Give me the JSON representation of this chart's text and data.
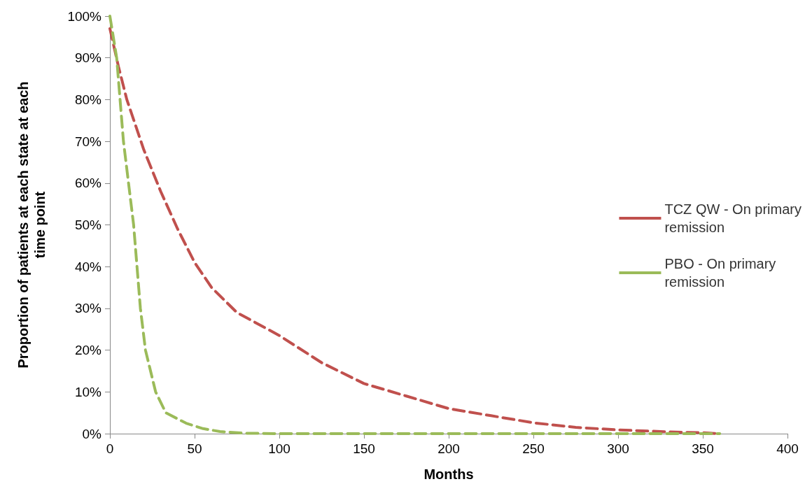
{
  "chart_data": {
    "type": "line",
    "xlabel": "Months",
    "ylabel": "Proportion of patients at each state at each time point",
    "xlim": [
      0,
      400
    ],
    "xticks": [
      0,
      50,
      100,
      150,
      200,
      250,
      300,
      350,
      400
    ],
    "ylim": [
      0,
      100
    ],
    "yticks": [
      {
        "value": 0,
        "label": "0%"
      },
      {
        "value": 10,
        "label": "10%"
      },
      {
        "value": 20,
        "label": "20%"
      },
      {
        "value": 30,
        "label": "30%"
      },
      {
        "value": 40,
        "label": "40%"
      },
      {
        "value": 50,
        "label": "50%"
      },
      {
        "value": 60,
        "label": "60%"
      },
      {
        "value": 70,
        "label": "70%"
      },
      {
        "value": 80,
        "label": "80%"
      },
      {
        "value": 90,
        "label": "90%"
      },
      {
        "value": 100,
        "label": "100%"
      }
    ],
    "grid": false,
    "legend": "right",
    "marker": "none",
    "line_style": "dashed",
    "series": [
      {
        "name": "TCZ QW - On primary remission",
        "color": "#c0504d",
        "x": [
          0,
          5,
          10,
          20,
          30,
          40,
          50,
          60,
          75,
          100,
          125,
          150,
          175,
          200,
          225,
          250,
          275,
          300,
          325,
          350,
          360
        ],
        "values": [
          97,
          88,
          80,
          68,
          58,
          49,
          41,
          35,
          29,
          23.5,
          17,
          12,
          9,
          6,
          4.3,
          2.6,
          1.5,
          0.9,
          0.5,
          0.2,
          0
        ]
      },
      {
        "name": "PBO - On primary remission",
        "color": "#9bbb59",
        "x": [
          0,
          2,
          4,
          6,
          8,
          11,
          14,
          16,
          18,
          21,
          27,
          33,
          45,
          55,
          65,
          80,
          100,
          200,
          300,
          360
        ],
        "values": [
          100,
          95,
          90,
          80,
          70,
          60,
          50,
          40,
          30,
          20,
          10,
          5,
          2.5,
          1.2,
          0.5,
          0.1,
          0,
          0,
          0,
          0
        ]
      }
    ]
  }
}
